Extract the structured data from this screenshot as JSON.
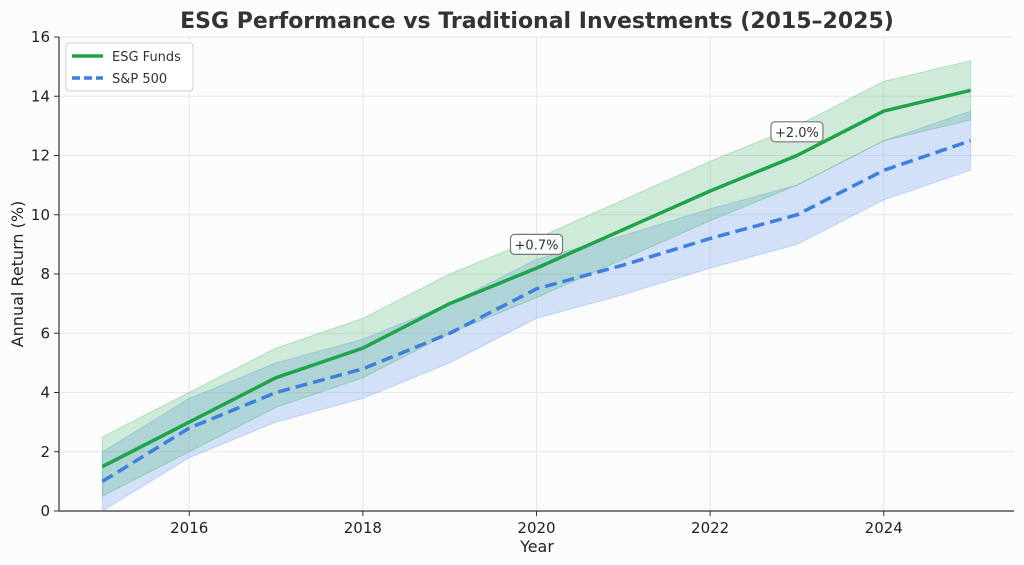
{
  "chart_data": {
    "type": "line",
    "title": "ESG Performance vs Traditional Investments (2015–2025)",
    "xlabel": "Year",
    "ylabel": "Annual Return (%)",
    "x": [
      2015,
      2016,
      2017,
      2018,
      2019,
      2020,
      2021,
      2022,
      2023,
      2024,
      2025
    ],
    "xlim": [
      2014.5,
      2025.5
    ],
    "ylim": [
      0,
      16
    ],
    "xticks": [
      2016,
      2018,
      2020,
      2022,
      2024
    ],
    "yticks": [
      0,
      2,
      4,
      6,
      8,
      10,
      12,
      14,
      16
    ],
    "grid": true,
    "legend_position": "top-left",
    "series": [
      {
        "name": "ESG Funds",
        "color": "#1fa34a",
        "style": "solid",
        "values": [
          1.5,
          3.0,
          4.5,
          5.5,
          7.0,
          8.2,
          9.5,
          10.8,
          12.0,
          13.5,
          14.2
        ],
        "band_lower": [
          0.5,
          2.0,
          3.5,
          4.5,
          6.0,
          7.2,
          8.5,
          9.8,
          11.0,
          12.5,
          13.2
        ],
        "band_upper": [
          2.5,
          4.0,
          5.5,
          6.5,
          8.0,
          9.2,
          10.5,
          11.8,
          13.0,
          14.5,
          15.2
        ]
      },
      {
        "name": "S&P 500",
        "color": "#3d7fe0",
        "style": "dashed",
        "values": [
          1.0,
          2.8,
          4.0,
          4.8,
          6.0,
          7.5,
          8.3,
          9.2,
          10.0,
          11.5,
          12.5
        ],
        "band_lower": [
          0.0,
          1.8,
          3.0,
          3.8,
          5.0,
          6.5,
          7.3,
          8.2,
          9.0,
          10.5,
          11.5
        ],
        "band_upper": [
          2.0,
          3.8,
          5.0,
          5.8,
          7.0,
          8.5,
          9.3,
          10.2,
          11.0,
          12.5,
          13.5
        ]
      }
    ],
    "annotations": [
      {
        "text": "+0.7%",
        "x": 2020,
        "y": 9.0
      },
      {
        "text": "+2.0%",
        "x": 2023,
        "y": 12.8
      }
    ]
  }
}
